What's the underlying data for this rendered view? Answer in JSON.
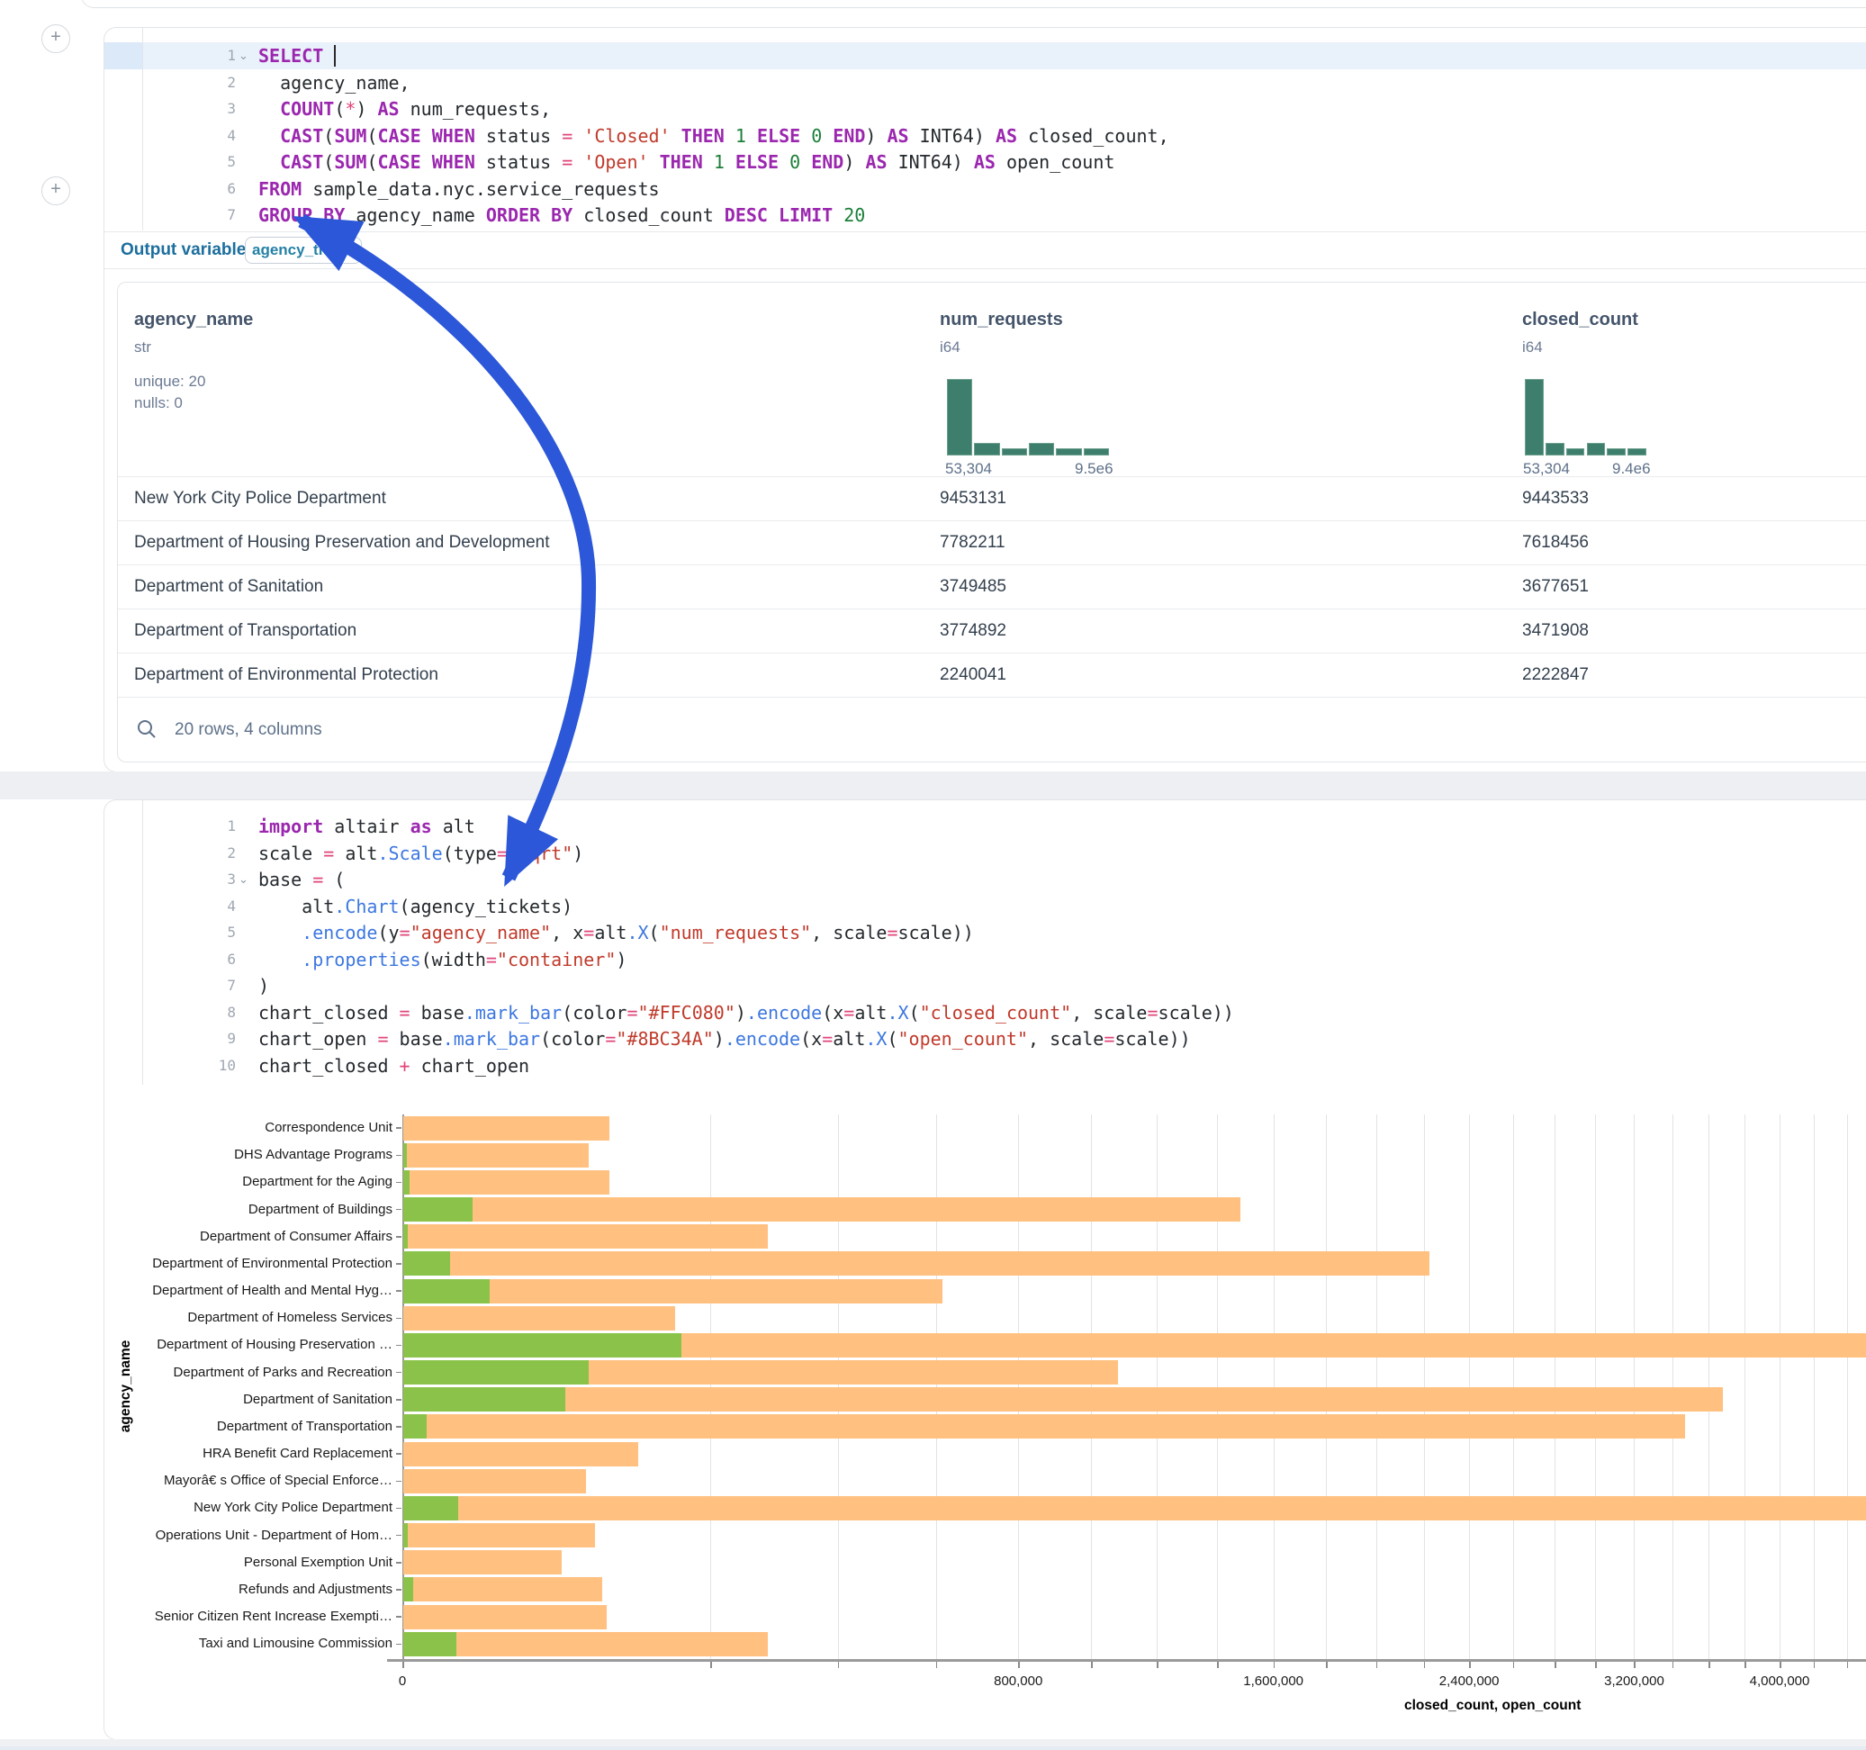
{
  "output_variable": {
    "label": "Output variable:",
    "value": "agency_tickets"
  },
  "sql": {
    "line_numbers": [
      "1",
      "2",
      "3",
      "4",
      "5",
      "6",
      "7"
    ],
    "fold_line": 1,
    "highlight_line": 1,
    "cursor_line": 1,
    "lines": [
      [
        [
          "kw",
          "SELECT"
        ],
        [
          "pl",
          " "
        ],
        [
          "cursor",
          ""
        ]
      ],
      [
        [
          "pl",
          "  agency_name,"
        ]
      ],
      [
        [
          "pl",
          "  "
        ],
        [
          "kw",
          "COUNT"
        ],
        [
          "pl",
          "("
        ],
        [
          "op",
          "*"
        ],
        [
          "pl",
          ") "
        ],
        [
          "kw",
          "AS"
        ],
        [
          "pl",
          " num_requests,"
        ]
      ],
      [
        [
          "pl",
          "  "
        ],
        [
          "kw",
          "CAST"
        ],
        [
          "pl",
          "("
        ],
        [
          "kw",
          "SUM"
        ],
        [
          "pl",
          "("
        ],
        [
          "kw",
          "CASE"
        ],
        [
          "pl",
          " "
        ],
        [
          "kw",
          "WHEN"
        ],
        [
          "pl",
          " status "
        ],
        [
          "op",
          "="
        ],
        [
          "pl",
          " "
        ],
        [
          "str",
          "'Closed'"
        ],
        [
          "pl",
          " "
        ],
        [
          "kw",
          "THEN"
        ],
        [
          "pl",
          " "
        ],
        [
          "num",
          "1"
        ],
        [
          "pl",
          " "
        ],
        [
          "kw",
          "ELSE"
        ],
        [
          "pl",
          " "
        ],
        [
          "num",
          "0"
        ],
        [
          "pl",
          " "
        ],
        [
          "kw",
          "END"
        ],
        [
          "pl",
          ") "
        ],
        [
          "kw",
          "AS"
        ],
        [
          "pl",
          " INT64) "
        ],
        [
          "kw",
          "AS"
        ],
        [
          "pl",
          " closed_count,"
        ]
      ],
      [
        [
          "pl",
          "  "
        ],
        [
          "kw",
          "CAST"
        ],
        [
          "pl",
          "("
        ],
        [
          "kw",
          "SUM"
        ],
        [
          "pl",
          "("
        ],
        [
          "kw",
          "CASE"
        ],
        [
          "pl",
          " "
        ],
        [
          "kw",
          "WHEN"
        ],
        [
          "pl",
          " status "
        ],
        [
          "op",
          "="
        ],
        [
          "pl",
          " "
        ],
        [
          "str",
          "'Open'"
        ],
        [
          "pl",
          " "
        ],
        [
          "kw",
          "THEN"
        ],
        [
          "pl",
          " "
        ],
        [
          "num",
          "1"
        ],
        [
          "pl",
          " "
        ],
        [
          "kw",
          "ELSE"
        ],
        [
          "pl",
          " "
        ],
        [
          "num",
          "0"
        ],
        [
          "pl",
          " "
        ],
        [
          "kw",
          "END"
        ],
        [
          "pl",
          ") "
        ],
        [
          "kw",
          "AS"
        ],
        [
          "pl",
          " INT64) "
        ],
        [
          "kw",
          "AS"
        ],
        [
          "pl",
          " open_count"
        ]
      ],
      [
        [
          "kw",
          "FROM"
        ],
        [
          "pl",
          " sample_data.nyc.service_requests"
        ]
      ],
      [
        [
          "kw",
          "GROUP BY"
        ],
        [
          "pl",
          " agency_name "
        ],
        [
          "kw",
          "ORDER BY"
        ],
        [
          "pl",
          " closed_count "
        ],
        [
          "kw",
          "DESC"
        ],
        [
          "pl",
          " "
        ],
        [
          "kw",
          "LIMIT"
        ],
        [
          "pl",
          " "
        ],
        [
          "num",
          "20"
        ]
      ]
    ]
  },
  "python": {
    "line_numbers": [
      "1",
      "2",
      "3",
      "4",
      "5",
      "6",
      "7",
      "8",
      "9",
      "10"
    ],
    "fold_line": 3,
    "lines": [
      [
        [
          "kw",
          "import"
        ],
        [
          "pl",
          " altair "
        ],
        [
          "kw",
          "as"
        ],
        [
          "pl",
          " alt"
        ]
      ],
      [
        [
          "pl",
          "scale "
        ],
        [
          "op",
          "="
        ],
        [
          "pl",
          " alt"
        ],
        [
          "fn",
          ".Scale"
        ],
        [
          "pl",
          "(type"
        ],
        [
          "op",
          "="
        ],
        [
          "str",
          "\"sqrt\""
        ],
        [
          "pl",
          ")"
        ]
      ],
      [
        [
          "pl",
          "base "
        ],
        [
          "op",
          "="
        ],
        [
          "pl",
          " ("
        ]
      ],
      [
        [
          "pl",
          "    alt"
        ],
        [
          "fn",
          ".Chart"
        ],
        [
          "pl",
          "(agency_tickets)"
        ]
      ],
      [
        [
          "pl",
          "    "
        ],
        [
          "fn",
          ".encode"
        ],
        [
          "pl",
          "(y"
        ],
        [
          "op",
          "="
        ],
        [
          "str",
          "\"agency_name\""
        ],
        [
          "pl",
          ", x"
        ],
        [
          "op",
          "="
        ],
        [
          "pl",
          "alt"
        ],
        [
          "fn",
          ".X"
        ],
        [
          "pl",
          "("
        ],
        [
          "str",
          "\"num_requests\""
        ],
        [
          "pl",
          ", scale"
        ],
        [
          "op",
          "="
        ],
        [
          "pl",
          "scale))"
        ]
      ],
      [
        [
          "pl",
          "    "
        ],
        [
          "fn",
          ".properties"
        ],
        [
          "pl",
          "(width"
        ],
        [
          "op",
          "="
        ],
        [
          "str",
          "\"container\""
        ],
        [
          "pl",
          ")"
        ]
      ],
      [
        [
          "pl",
          ")"
        ]
      ],
      [
        [
          "pl",
          "chart_closed "
        ],
        [
          "op",
          "="
        ],
        [
          "pl",
          " base"
        ],
        [
          "fn",
          ".mark_bar"
        ],
        [
          "pl",
          "(color"
        ],
        [
          "op",
          "="
        ],
        [
          "str",
          "\"#FFC080\""
        ],
        [
          "pl",
          ")"
        ],
        [
          "fn",
          ".encode"
        ],
        [
          "pl",
          "(x"
        ],
        [
          "op",
          "="
        ],
        [
          "pl",
          "alt"
        ],
        [
          "fn",
          ".X"
        ],
        [
          "pl",
          "("
        ],
        [
          "str",
          "\"closed_count\""
        ],
        [
          "pl",
          ", scale"
        ],
        [
          "op",
          "="
        ],
        [
          "pl",
          "scale))"
        ]
      ],
      [
        [
          "pl",
          "chart_open "
        ],
        [
          "op",
          "="
        ],
        [
          "pl",
          " base"
        ],
        [
          "fn",
          ".mark_bar"
        ],
        [
          "pl",
          "(color"
        ],
        [
          "op",
          "="
        ],
        [
          "str",
          "\"#8BC34A\""
        ],
        [
          "pl",
          ")"
        ],
        [
          "fn",
          ".encode"
        ],
        [
          "pl",
          "(x"
        ],
        [
          "op",
          "="
        ],
        [
          "pl",
          "alt"
        ],
        [
          "fn",
          ".X"
        ],
        [
          "pl",
          "("
        ],
        [
          "str",
          "\"open_count\""
        ],
        [
          "pl",
          ", scale"
        ],
        [
          "op",
          "="
        ],
        [
          "pl",
          "scale))"
        ]
      ],
      [
        [
          "pl",
          "chart_closed "
        ],
        [
          "op",
          "+"
        ],
        [
          "pl",
          " chart_open"
        ]
      ]
    ]
  },
  "table": {
    "footer": "20 rows, 4 columns",
    "hist_color": "#3E7E6C",
    "columns": [
      {
        "name": "agency_name",
        "type": "str",
        "kind": "text",
        "x": 18,
        "stats": [
          "unique: 20",
          "nulls: 0"
        ]
      },
      {
        "name": "num_requests",
        "type": "i64",
        "kind": "numeric",
        "x": 913,
        "hist": [
          100,
          16,
          9,
          17,
          9,
          9
        ],
        "hist_x": 921,
        "hist_w": 180,
        "min_label": "53,304",
        "max_label": "9.5e6"
      },
      {
        "name": "closed_count",
        "type": "i64",
        "kind": "numeric",
        "x": 1560,
        "hist": [
          100,
          16,
          9,
          17,
          9,
          9
        ],
        "hist_x": 1563,
        "hist_w": 135,
        "min_label": "53,304",
        "max_label": "9.4e6"
      }
    ],
    "rows": [
      [
        "New York City Police Department",
        "9453131",
        "9443533"
      ],
      [
        "Department of Housing Preservation and Development",
        "7782211",
        "7618456"
      ],
      [
        "Department of Sanitation",
        "3749485",
        "3677651"
      ],
      [
        "Department of Transportation",
        "3774892",
        "3471908"
      ],
      [
        "Department of Environmental Protection",
        "2240041",
        "2222847"
      ]
    ]
  },
  "chart_data": {
    "type": "bar",
    "orientation": "horizontal",
    "x_scale": "sqrt",
    "xlabel": "closed_count, open_count",
    "ylabel": "agency_name",
    "grid": true,
    "x_ticks_labeled": [
      0,
      800000,
      1600000,
      2400000,
      3200000,
      4000000
    ],
    "x_tick_labels": [
      "0",
      "800,000",
      "1,600,000",
      "2,400,000",
      "3,200,000",
      "4,000,000"
    ],
    "minor_tick_step": 200000,
    "categories": [
      "Correspondence Unit",
      "DHS Advantage Programs",
      "Department for the Aging",
      "Department of Buildings",
      "Department of Consumer Affairs",
      "Department of Environmental Protection",
      "Department of Health and Mental Hyg…",
      "Department of Homeless Services",
      "Department of Housing Preservation …",
      "Department of Parks and Recreation",
      "Department of Sanitation",
      "Department of Transportation",
      "HRA Benefit Card Replacement",
      "Mayorâ€ s Office of Special Enforce…",
      "New York City Police Department",
      "Operations Unit - Department of Hom…",
      "Personal Exemption Unit",
      "Refunds and Adjustments",
      "Senior Citizen Rent Increase Exempti…",
      "Taxi and Limousine Commission"
    ],
    "series": [
      {
        "name": "closed_count",
        "color": "#FFC080",
        "values": [
          90000,
          73000,
          90000,
          1480000,
          282000,
          2222847,
          615000,
          157000,
          7618456,
          1080000,
          3677651,
          3471908,
          117000,
          71000,
          9443533,
          78000,
          53500,
          84000,
          88000,
          282000
        ]
      },
      {
        "name": "open_count",
        "color": "#8BC34A",
        "values": [
          0,
          40,
          110,
          10500,
          60,
          4800,
          16000,
          0,
          163755,
          73000,
          56000,
          1200,
          0,
          0,
          6500,
          60,
          0,
          250,
          0,
          6200
        ]
      }
    ]
  },
  "arrow": {
    "color": "#2B57D8"
  }
}
